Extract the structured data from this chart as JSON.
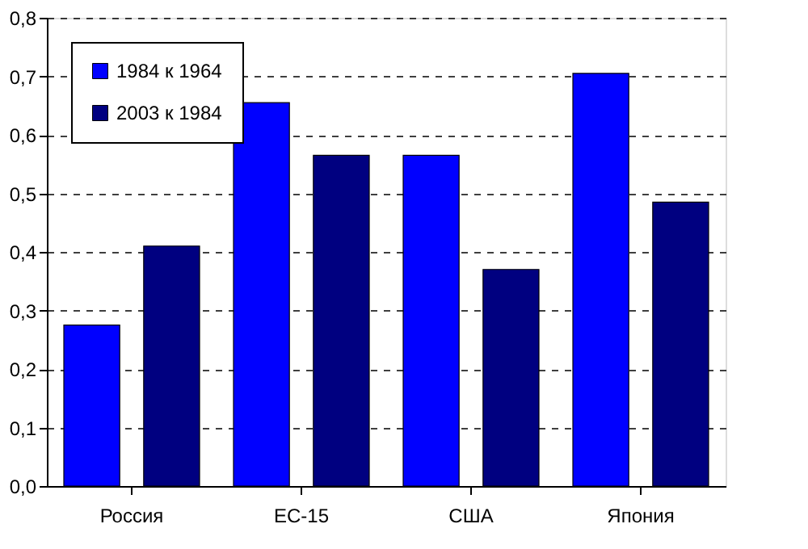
{
  "chart_data": {
    "type": "bar",
    "categories": [
      "Россия",
      "ЕС-15",
      "США",
      "Япония"
    ],
    "series": [
      {
        "name": "1984 к 1964",
        "color": "#0000ff",
        "values": [
          0.275,
          0.655,
          0.565,
          0.705
        ]
      },
      {
        "name": "2003 к 1984",
        "color": "#000080",
        "values": [
          0.41,
          0.565,
          0.37,
          0.485
        ]
      }
    ],
    "ylim": [
      0,
      0.8
    ],
    "yticks": [
      {
        "value": 0,
        "label": "0,0"
      },
      {
        "value": 0.1,
        "label": "0,1"
      },
      {
        "value": 0.2,
        "label": "0,2"
      },
      {
        "value": 0.3,
        "label": "0,3"
      },
      {
        "value": 0.4,
        "label": "0,4"
      },
      {
        "value": 0.5,
        "label": "0,5"
      },
      {
        "value": 0.6,
        "label": "0,6"
      },
      {
        "value": 0.7,
        "label": "0,7"
      },
      {
        "value": 0.8,
        "label": "0,8"
      }
    ],
    "grid": "y",
    "legend": "top left"
  }
}
